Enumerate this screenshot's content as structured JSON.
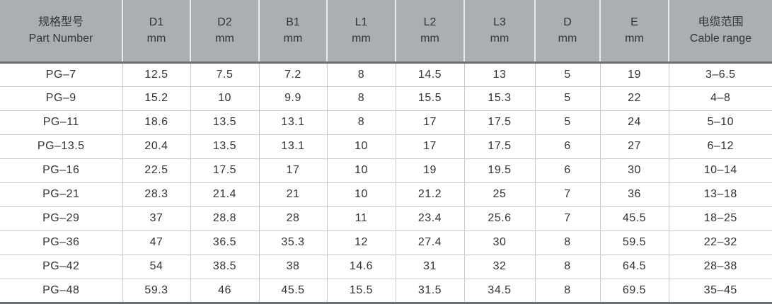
{
  "colors": {
    "header_bg": "#acafb2",
    "header_divider": "#e9eaea",
    "header_underline": "#6a6e70",
    "row_divider": "#c7cacb",
    "text": "#333333",
    "row_bg": "#ffffff"
  },
  "chart_data": {
    "type": "table",
    "title": "PG cable gland specification table",
    "columns": [
      {
        "line1": "规格型号",
        "line2": "Part Number"
      },
      {
        "line1": "D1",
        "line2": "mm"
      },
      {
        "line1": "D2",
        "line2": "mm"
      },
      {
        "line1": "B1",
        "line2": "mm"
      },
      {
        "line1": "L1",
        "line2": "mm"
      },
      {
        "line1": "L2",
        "line2": "mm"
      },
      {
        "line1": "L3",
        "line2": "mm"
      },
      {
        "line1": "D",
        "line2": "mm"
      },
      {
        "line1": "E",
        "line2": "mm"
      },
      {
        "line1": "电缆范围",
        "line2": "Cable range"
      }
    ],
    "rows": [
      [
        "PG–7",
        "12.5",
        "7.5",
        "7.2",
        "8",
        "14.5",
        "13",
        "5",
        "19",
        "3–6.5"
      ],
      [
        "PG–9",
        "15.2",
        "10",
        "9.9",
        "8",
        "15.5",
        "15.3",
        "5",
        "22",
        "4–8"
      ],
      [
        "PG–11",
        "18.6",
        "13.5",
        "13.1",
        "8",
        "17",
        "17.5",
        "5",
        "24",
        "5–10"
      ],
      [
        "PG–13.5",
        "20.4",
        "13.5",
        "13.1",
        "10",
        "17",
        "17.5",
        "6",
        "27",
        "6–12"
      ],
      [
        "PG–16",
        "22.5",
        "17.5",
        "17",
        "10",
        "19",
        "19.5",
        "6",
        "30",
        "10–14"
      ],
      [
        "PG–21",
        "28.3",
        "21.4",
        "21",
        "10",
        "21.2",
        "25",
        "7",
        "36",
        "13–18"
      ],
      [
        "PG–29",
        "37",
        "28.8",
        "28",
        "11",
        "23.4",
        "25.6",
        "7",
        "45.5",
        "18–25"
      ],
      [
        "PG–36",
        "47",
        "36.5",
        "35.3",
        "12",
        "27.4",
        "30",
        "8",
        "59.5",
        "22–32"
      ],
      [
        "PG–42",
        "54",
        "38.5",
        "38",
        "14.6",
        "31",
        "32",
        "8",
        "64.5",
        "28–38"
      ],
      [
        "PG–48",
        "59.3",
        "46",
        "45.5",
        "15.5",
        "31.5",
        "34.5",
        "8",
        "69.5",
        "35–45"
      ]
    ]
  }
}
